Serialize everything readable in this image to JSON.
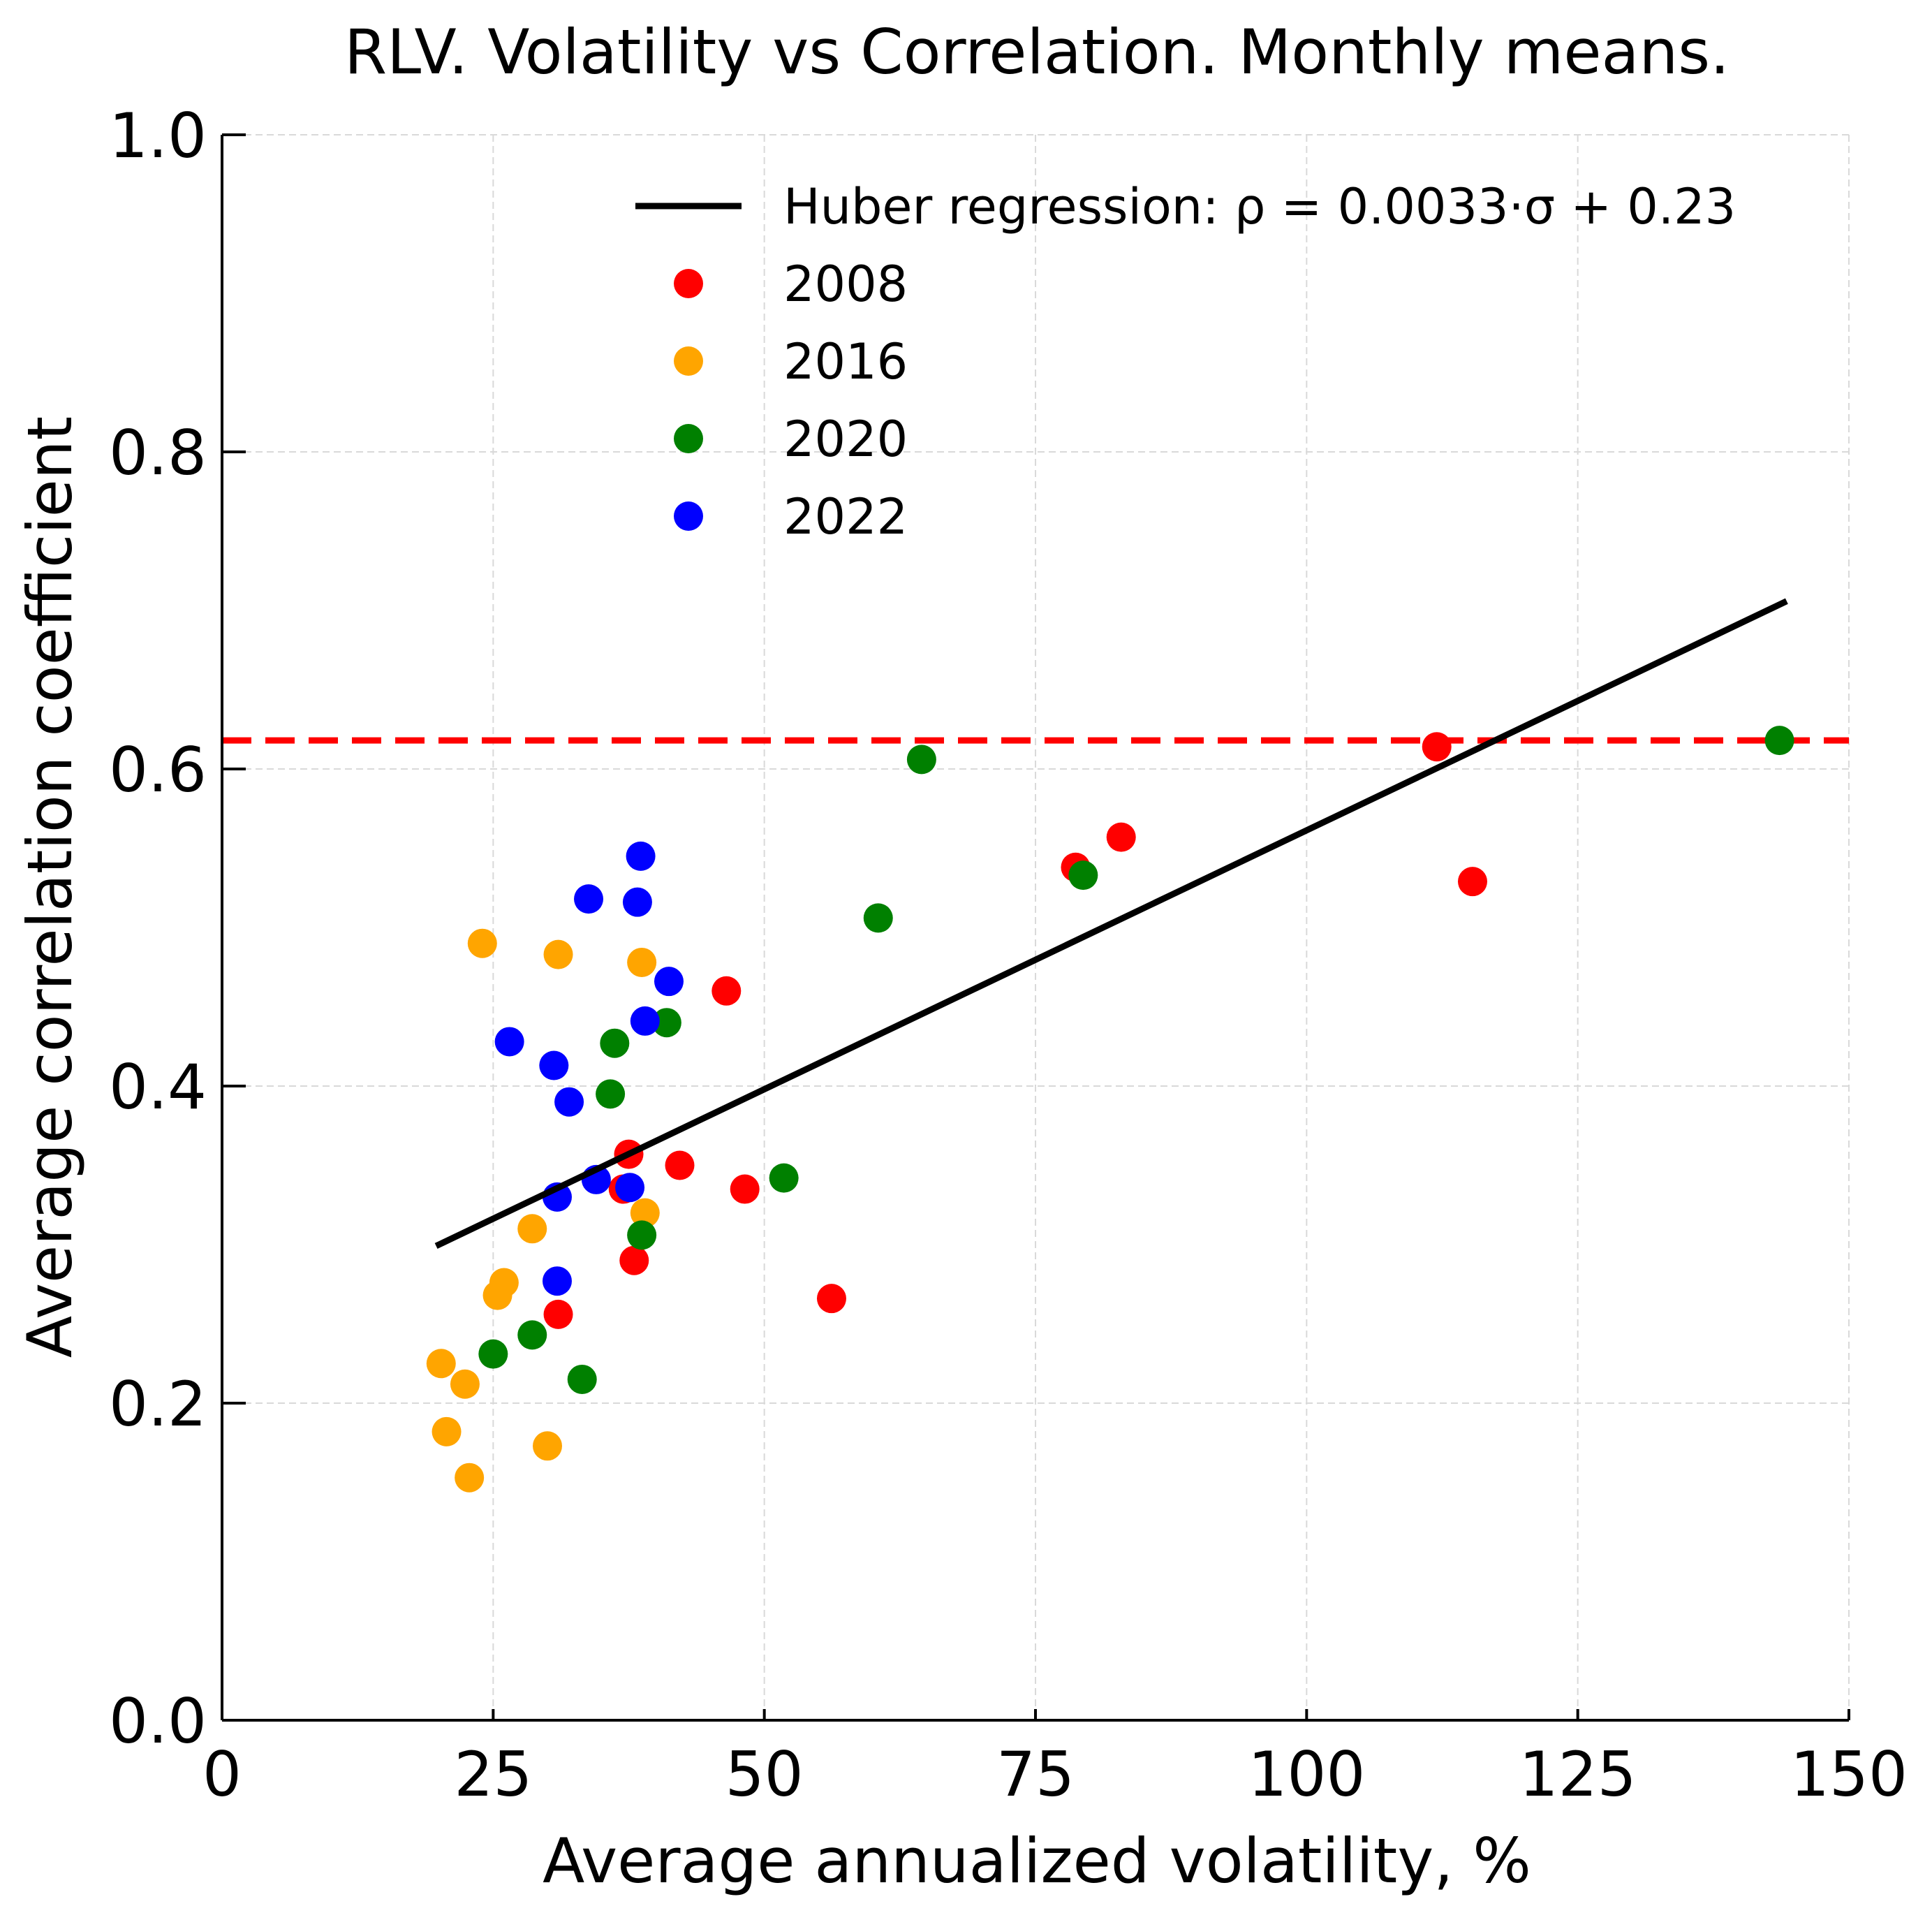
{
  "chart_data": {
    "type": "scatter",
    "title": "RLV. Volatility vs Correlation. Monthly means.",
    "xlabel": "Average annualized volatility, %",
    "ylabel": "Average correlation coefficient",
    "xlim": [
      0,
      150
    ],
    "ylim": [
      0,
      1.0
    ],
    "xticks": [
      "0",
      "25",
      "50",
      "75",
      "100",
      "125",
      "150"
    ],
    "yticks": [
      "0.0",
      "0.2",
      "0.4",
      "0.6",
      "0.8",
      "1.0"
    ],
    "grid": true,
    "legend_position": "top-right",
    "regression": {
      "label": "Huber regression: ρ = 0.0033·σ + 0.23",
      "color": "#000000",
      "x": [
        20,
        144
      ],
      "y": [
        0.3,
        0.705
      ]
    },
    "reference_line": {
      "y": 0.618,
      "color": "#ff0000",
      "style": "dashed"
    },
    "series": [
      {
        "name": "2008",
        "color": "#ff0000",
        "x": [
          46.5,
          42.2,
          48.2,
          37.5,
          37.0,
          38.0,
          31.0,
          56.2,
          78.7,
          82.9,
          112.0,
          115.3
        ],
        "y": [
          0.46,
          0.35,
          0.335,
          0.357,
          0.335,
          0.29,
          0.256,
          0.266,
          0.538,
          0.557,
          0.614,
          0.529
        ]
      },
      {
        "name": "2016",
        "color": "#ffa500",
        "x": [
          24.0,
          31.0,
          38.7,
          39.0,
          28.6,
          26.0,
          25.4,
          20.2,
          22.4,
          20.7,
          22.8,
          30.0
        ],
        "y": [
          0.49,
          0.483,
          0.478,
          0.32,
          0.31,
          0.276,
          0.268,
          0.225,
          0.212,
          0.182,
          0.153,
          0.173
        ]
      },
      {
        "name": "2020",
        "color": "#008000",
        "x": [
          64.5,
          60.5,
          41.0,
          36.2,
          35.8,
          51.8,
          38.7,
          28.6,
          25.0,
          33.2,
          79.4,
          143.6
        ],
        "y": [
          0.606,
          0.506,
          0.44,
          0.427,
          0.395,
          0.342,
          0.306,
          0.243,
          0.231,
          0.215,
          0.533,
          0.618
        ]
      },
      {
        "name": "2022",
        "color": "#0000ff",
        "x": [
          38.6,
          33.8,
          38.3,
          41.2,
          39.0,
          26.5,
          30.6,
          32.0,
          34.5,
          37.6,
          30.9,
          30.9
        ],
        "y": [
          0.545,
          0.518,
          0.516,
          0.466,
          0.441,
          0.428,
          0.413,
          0.39,
          0.341,
          0.336,
          0.33,
          0.277
        ]
      }
    ]
  }
}
